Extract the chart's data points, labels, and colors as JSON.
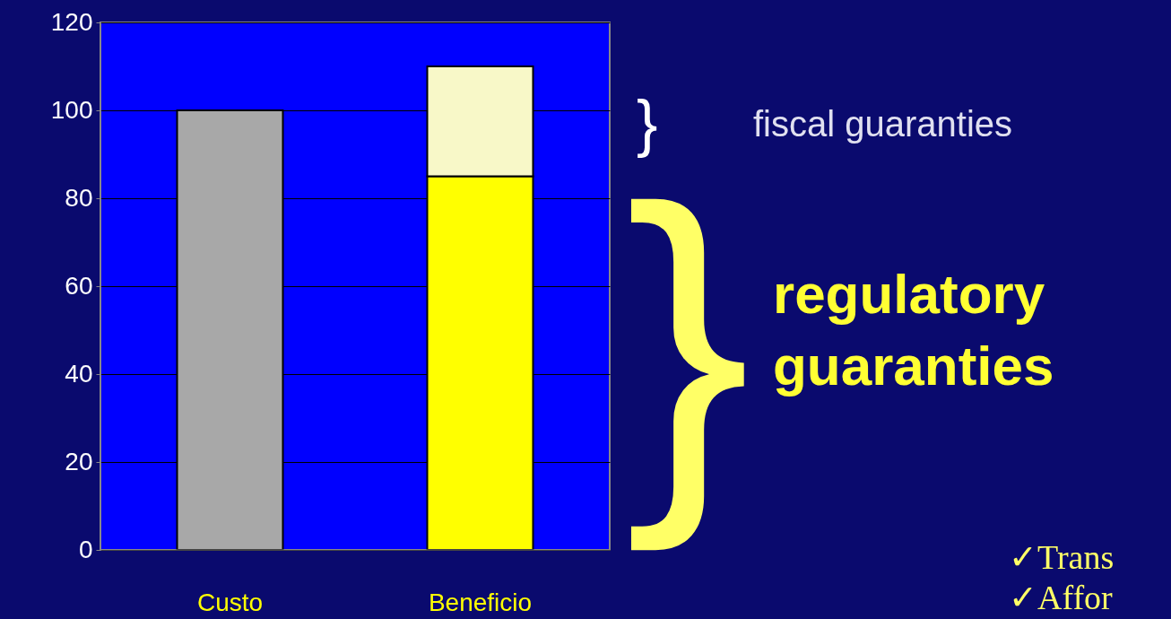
{
  "chart_data": {
    "type": "bar",
    "stacked": true,
    "categories": [
      "Custo",
      "Beneficio"
    ],
    "series": [
      {
        "colors": [
          "#a8a8a8",
          "#ffff00"
        ],
        "values": [
          100,
          85
        ]
      },
      {
        "color": "#f8f8c8",
        "values": [
          null,
          25
        ]
      }
    ],
    "ylim": [
      0,
      120
    ],
    "yticks": [
      0,
      20,
      40,
      60,
      80,
      100,
      120
    ],
    "grid": "y",
    "annotations": [
      "}",
      "fiscal guaranties",
      "}",
      "regulatory",
      "guaranties",
      "✓Trans",
      "✓Affor"
    ]
  }
}
